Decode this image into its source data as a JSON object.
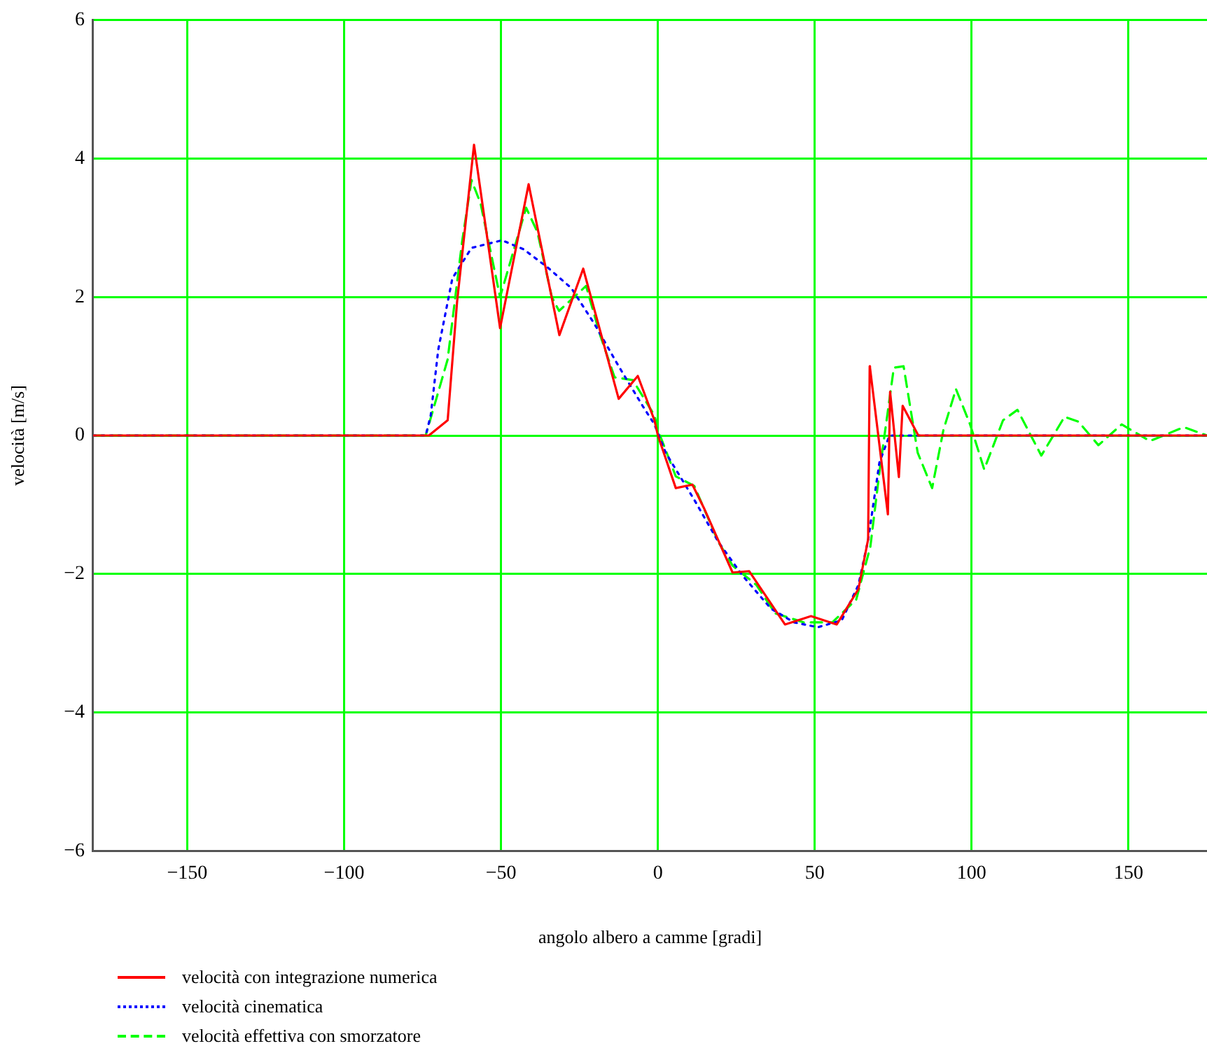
{
  "chart_data": {
    "type": "line",
    "xlabel": "angolo albero a camme [gradi]",
    "ylabel": "velocità [m/s]",
    "xlim": [
      -180,
      175
    ],
    "ylim": [
      -6,
      6
    ],
    "xticks": [
      -150,
      -100,
      -50,
      0,
      50,
      100,
      150
    ],
    "yticks": [
      -6,
      -4,
      -2,
      0,
      2,
      4,
      6
    ],
    "grid": true,
    "legend": "bottom left",
    "marker": "none",
    "series": [
      {
        "name": "velocità con integrazione numerica",
        "color": "#ff0000",
        "line_style": "solid",
        "x": [
          -180,
          -73,
          -67,
          -64,
          -58.6,
          -50.3,
          -41.2,
          -31.4,
          -23.8,
          -12.5,
          -6.4,
          -1.1,
          0,
          5.7,
          11,
          14.8,
          23.8,
          29.1,
          40.5,
          48.8,
          57,
          63.9,
          67,
          67.5,
          67.6,
          73.3,
          74,
          76.8,
          78,
          83,
          175
        ],
        "values": [
          0,
          0,
          0.22,
          1.93,
          4.2,
          1.55,
          3.63,
          1.45,
          2.41,
          0.53,
          0.86,
          0.22,
          0,
          -0.76,
          -0.71,
          -1.06,
          -1.98,
          -1.96,
          -2.73,
          -2.61,
          -2.73,
          -2.22,
          -1.5,
          1.0,
          0.98,
          -1.14,
          0.63,
          -0.6,
          0.43,
          0,
          0
        ]
      },
      {
        "name": "velocità cinematica",
        "color": "#0000ff",
        "line_style": "dotted",
        "x": [
          -180,
          -74,
          -72.4,
          -70,
          -65.5,
          -59.4,
          -49.7,
          -42.8,
          -35.2,
          -27.6,
          -20.2,
          -12.5,
          -4.9,
          -1.1,
          2.5,
          11.6,
          19.3,
          26.9,
          36,
          43.4,
          51,
          58.6,
          63.9,
          67,
          70.6,
          73.8,
          175
        ],
        "values": [
          0,
          0,
          0.29,
          1.24,
          2.27,
          2.71,
          2.82,
          2.69,
          2.43,
          2.13,
          1.61,
          1.0,
          0.43,
          0.16,
          -0.25,
          -0.93,
          -1.54,
          -2.02,
          -2.5,
          -2.7,
          -2.77,
          -2.67,
          -2.16,
          -1.51,
          -0.39,
          0,
          0
        ]
      },
      {
        "name": "velocità effettiva con smorzatore",
        "color": "#00ff00",
        "line_style": "dashed",
        "x": [
          -180,
          -74,
          -67,
          -62.4,
          -59.4,
          -56.5,
          -50.3,
          -42,
          -38.4,
          -33.8,
          -31.5,
          -22.9,
          -18.4,
          -13.8,
          -8,
          -1.1,
          0,
          5.7,
          11.6,
          19.3,
          23.8,
          31.4,
          37.4,
          46.5,
          55.6,
          63.2,
          67.7,
          70.6,
          75.2,
          78.3,
          82.8,
          87.4,
          91,
          95,
          99.5,
          104,
          110,
          114.6,
          122.2,
          129.6,
          134,
          140.4,
          147.8,
          156.8,
          167.6,
          175
        ],
        "values": [
          0,
          0,
          1.1,
          2.8,
          3.69,
          3.35,
          2.0,
          3.29,
          2.94,
          2.0,
          1.8,
          2.16,
          1.45,
          0.84,
          0.8,
          0.29,
          0.08,
          -0.59,
          -0.73,
          -1.54,
          -1.88,
          -2.16,
          -2.57,
          -2.7,
          -2.7,
          -2.37,
          -1.61,
          -0.53,
          0.98,
          1.0,
          -0.25,
          -0.76,
          0.08,
          0.67,
          0.16,
          -0.49,
          0.22,
          0.37,
          -0.29,
          0.27,
          0.2,
          -0.14,
          0.16,
          -0.08,
          0.12,
          0
        ]
      }
    ]
  }
}
